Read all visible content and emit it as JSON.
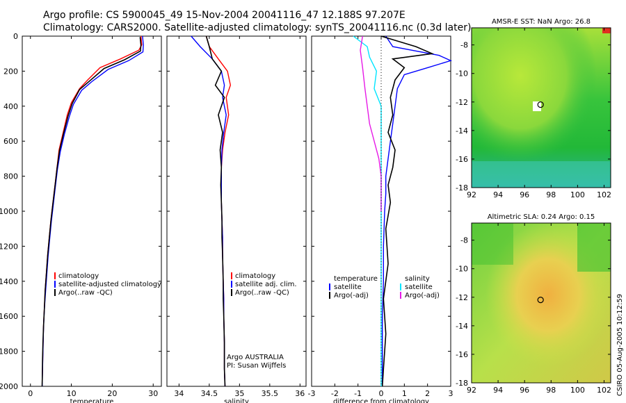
{
  "header": {
    "line1": "Argo profile: CS 5900045_49 15-Nov-2004 20041116_47 12.188S 97.207E",
    "line2": "Climatology: CARS2000. Satellite-adjusted climatology: synTS_20041116.nc (0.3d later)"
  },
  "side_stamp": "CSIRO 05-Aug-2005 10:12:59",
  "colors": {
    "clim": "#ff0000",
    "sat": "#0000ff",
    "argo": "#000000",
    "sal_sat": "#00e5ff",
    "sal_adj": "#e619e6"
  },
  "chart_data": [
    {
      "type": "line",
      "panel": "temperature",
      "xlabel": "temperature",
      "xlim": [
        -2,
        32
      ],
      "ylim": [
        2000,
        0
      ],
      "xticks": [
        "0",
        "10",
        "20",
        "30"
      ],
      "yticks": [
        "0",
        "200",
        "400",
        "600",
        "800",
        "1000",
        "1200",
        "1400",
        "1600",
        "1800",
        "2000"
      ],
      "legend": [
        "climatology",
        "satellite-adjusted climatology",
        "Argo(..raw -QC)"
      ],
      "series": [
        {
          "name": "climatology",
          "color": "#ff0000",
          "x": [
            27,
            27.2,
            26.5,
            22,
            17,
            14,
            12,
            10,
            9,
            8,
            7,
            6.5,
            6,
            5.5,
            5,
            4.6,
            4.2,
            3.9,
            3.6,
            3.4,
            3.2,
            3.1,
            3.0,
            2.9,
            2.9
          ],
          "y": [
            0,
            50,
            80,
            130,
            180,
            250,
            300,
            380,
            450,
            550,
            650,
            750,
            850,
            950,
            1050,
            1150,
            1250,
            1350,
            1450,
            1550,
            1650,
            1750,
            1850,
            1950,
            2000
          ]
        },
        {
          "name": "satellite-adjusted climatology",
          "color": "#0000ff",
          "x": [
            27.4,
            27.6,
            27.5,
            24,
            19,
            15,
            12.5,
            10.5,
            9.5,
            8.3,
            7.3,
            6.6,
            6.1,
            5.6,
            5.1,
            4.7,
            4.3,
            4.0,
            3.7,
            3.4,
            3.2,
            3.1,
            3.0,
            2.9,
            2.9
          ],
          "y": [
            0,
            50,
            90,
            140,
            190,
            260,
            310,
            390,
            460,
            560,
            660,
            760,
            860,
            960,
            1060,
            1160,
            1260,
            1360,
            1460,
            1560,
            1660,
            1760,
            1860,
            1960,
            2000
          ]
        },
        {
          "name": "Argo",
          "color": "#000000",
          "x": [
            26.8,
            27,
            26.9,
            23,
            18,
            14.5,
            12,
            10.2,
            9.2,
            8.1,
            7.1,
            6.5,
            6.0,
            5.5,
            5.0,
            4.6,
            4.2,
            3.9,
            3.6,
            3.4,
            3.2,
            3.05,
            2.95,
            2.9,
            2.85
          ],
          "y": [
            5,
            50,
            85,
            135,
            185,
            255,
            305,
            385,
            455,
            555,
            655,
            755,
            855,
            955,
            1055,
            1155,
            1255,
            1355,
            1455,
            1555,
            1655,
            1755,
            1855,
            1955,
            2000
          ]
        }
      ]
    },
    {
      "type": "line",
      "panel": "salinity",
      "xlabel": "salinity",
      "xlim": [
        33.8,
        36.1
      ],
      "ylim": [
        2000,
        0
      ],
      "xticks": [
        "34",
        "34.5",
        "35",
        "35.5",
        "36"
      ],
      "legend": [
        "climatology",
        "satellite adj. clim.",
        "Argo(..raw -QC)"
      ],
      "annotation": [
        "Argo AUSTRALIA",
        "PI: Susan Wijffels"
      ],
      "series": [
        {
          "name": "climatology",
          "color": "#ff0000",
          "x": [
            34.45,
            34.5,
            34.65,
            34.8,
            34.85,
            34.78,
            34.82,
            34.76,
            34.72,
            34.7,
            34.7,
            34.7,
            34.71,
            34.72,
            34.72,
            34.73,
            34.74,
            34.74,
            34.75,
            34.75,
            34.76
          ],
          "y": [
            0,
            60,
            130,
            200,
            280,
            350,
            450,
            550,
            650,
            750,
            850,
            950,
            1050,
            1150,
            1250,
            1400,
            1500,
            1600,
            1750,
            1900,
            2000
          ]
        },
        {
          "name": "satellite adj. clim.",
          "color": "#0000ff",
          "x": [
            34.2,
            34.35,
            34.55,
            34.7,
            34.75,
            34.72,
            34.78,
            34.74,
            34.71,
            34.7,
            34.7,
            34.7,
            34.71,
            34.72,
            34.72,
            34.73,
            34.74,
            34.74,
            34.75,
            34.75,
            34.76
          ],
          "y": [
            0,
            60,
            130,
            200,
            280,
            350,
            450,
            550,
            650,
            750,
            850,
            950,
            1050,
            1150,
            1250,
            1400,
            1500,
            1600,
            1750,
            1900,
            2000
          ]
        },
        {
          "name": "Argo",
          "color": "#000000",
          "x": [
            34.45,
            34.5,
            34.55,
            34.7,
            34.6,
            34.75,
            34.65,
            34.72,
            34.68,
            34.7,
            34.69,
            34.7,
            34.71,
            34.71,
            34.72,
            34.73,
            34.73,
            34.74,
            34.75,
            34.75,
            34.76
          ],
          "y": [
            0,
            60,
            130,
            200,
            280,
            350,
            450,
            550,
            650,
            750,
            850,
            950,
            1050,
            1150,
            1250,
            1400,
            1500,
            1600,
            1750,
            1900,
            2000
          ]
        }
      ]
    },
    {
      "type": "line",
      "panel": "difference",
      "xlabel": "difference from climatology",
      "xlim": [
        -3,
        3
      ],
      "ylim": [
        2000,
        0
      ],
      "xticks": [
        "-3",
        "-2",
        "-1",
        "0",
        "1",
        "2",
        "3"
      ],
      "legend_left_title": "temperature",
      "legend_left": [
        "satellite",
        "Argo(-adj)"
      ],
      "legend_right_title": "salinity",
      "legend_right": [
        "satellite",
        "Argo(-adj)"
      ],
      "series": [
        {
          "name": "temperature satellite",
          "color": "#0000ff",
          "x": [
            0.2,
            0.5,
            2.5,
            3.0,
            2.0,
            1.0,
            0.7,
            0.6,
            0.5,
            0.4,
            0.3,
            0.2,
            0.2,
            0.15,
            0.1,
            0.1,
            0.05,
            0.05,
            0.05
          ],
          "y": [
            0,
            60,
            110,
            140,
            180,
            220,
            300,
            400,
            500,
            600,
            700,
            800,
            900,
            1000,
            1200,
            1400,
            1600,
            1800,
            2000
          ]
        },
        {
          "name": "temperature Argo(-adj)",
          "color": "#000000",
          "x": [
            0,
            1.5,
            2.2,
            0.5,
            1.0,
            0.6,
            0.4,
            0.5,
            0.3,
            0.6,
            0.5,
            0.3,
            0.4,
            0.2,
            0.3,
            0.1,
            0.2,
            0.1,
            0.05
          ],
          "y": [
            0,
            60,
            100,
            130,
            180,
            250,
            350,
            450,
            550,
            650,
            750,
            850,
            950,
            1100,
            1300,
            1500,
            1700,
            1900,
            2000
          ]
        },
        {
          "name": "salinity satellite",
          "color": "#00e5ff",
          "x": [
            -1.2,
            -0.6,
            -0.5,
            -0.2,
            -0.3,
            0,
            0,
            0,
            0,
            0,
            0,
            0,
            0
          ],
          "y": [
            0,
            60,
            120,
            200,
            300,
            400,
            600,
            800,
            1000,
            1200,
            1500,
            1800,
            2000
          ]
        },
        {
          "name": "salinity Argo(-adj)",
          "color": "#e619e6",
          "x": [
            -0.8,
            -0.9,
            -0.8,
            -0.7,
            -0.6,
            -0.5,
            -0.3,
            -0.1,
            0,
            0
          ],
          "y": [
            0,
            80,
            180,
            300,
            400,
            500,
            600,
            700,
            800,
            1000
          ]
        }
      ]
    },
    {
      "type": "heatmap",
      "panel": "sst-map",
      "title": "AMSR-E SST: NaN Argo: 26.8",
      "xlim": [
        92,
        102.5
      ],
      "ylim": [
        -18,
        -6.8
      ],
      "xticks": [
        "92",
        "94",
        "96",
        "98",
        "100",
        "102"
      ],
      "yticks": [
        "-8",
        "-10",
        "-12",
        "-14",
        "-16",
        "-18"
      ],
      "float_lon": 97.207,
      "float_lat": -12.188
    },
    {
      "type": "heatmap",
      "panel": "sla-map",
      "title": "Altimetric SLA: 0.24 Argo: 0.15",
      "xlim": [
        92,
        102.5
      ],
      "ylim": [
        -18,
        -6.8
      ],
      "xticks": [
        "92",
        "94",
        "96",
        "98",
        "100",
        "102"
      ],
      "yticks": [
        "-8",
        "-10",
        "-12",
        "-14",
        "-16",
        "-18"
      ],
      "float_lon": 97.207,
      "float_lat": -12.188
    }
  ]
}
